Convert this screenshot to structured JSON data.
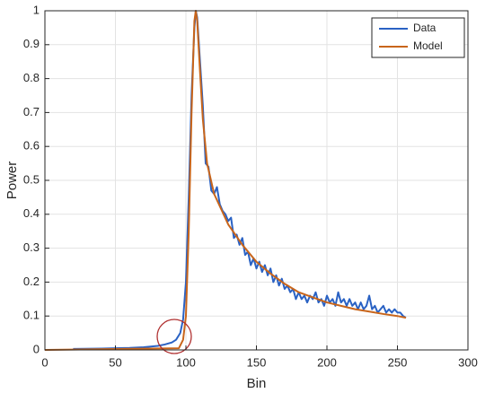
{
  "chart_data": {
    "type": "line",
    "xlabel": "Bin",
    "ylabel": "Power",
    "xlim": [
      0,
      300
    ],
    "xticks": [
      0,
      50,
      100,
      150,
      200,
      250,
      300
    ],
    "ylim": [
      0,
      1
    ],
    "yticks": [
      0,
      0.1,
      0.2,
      0.3,
      0.4,
      0.5,
      0.6,
      0.7,
      0.8,
      0.9,
      1
    ],
    "grid": true,
    "legend": "top-right",
    "series": [
      {
        "name": "Data",
        "color": "#2a62c4",
        "x": [
          20,
          40,
          60,
          70,
          80,
          85,
          90,
          93,
          96,
          98,
          100,
          102,
          104,
          106,
          107,
          108,
          110,
          112,
          114,
          116,
          118,
          120,
          122,
          124,
          126,
          128,
          130,
          132,
          134,
          136,
          138,
          140,
          142,
          144,
          146,
          148,
          150,
          152,
          154,
          156,
          158,
          160,
          162,
          164,
          166,
          168,
          170,
          172,
          174,
          176,
          178,
          180,
          182,
          184,
          186,
          188,
          190,
          192,
          194,
          196,
          198,
          200,
          202,
          204,
          206,
          208,
          210,
          212,
          214,
          216,
          218,
          220,
          222,
          224,
          226,
          228,
          230,
          232,
          234,
          236,
          238,
          240,
          242,
          244,
          246,
          248,
          250,
          252,
          254,
          256
        ],
        "values": [
          0.003,
          0.004,
          0.006,
          0.008,
          0.012,
          0.016,
          0.022,
          0.03,
          0.05,
          0.09,
          0.2,
          0.45,
          0.75,
          0.95,
          1.0,
          0.98,
          0.85,
          0.72,
          0.55,
          0.54,
          0.47,
          0.46,
          0.48,
          0.43,
          0.41,
          0.4,
          0.38,
          0.39,
          0.33,
          0.34,
          0.31,
          0.33,
          0.28,
          0.29,
          0.25,
          0.27,
          0.24,
          0.26,
          0.23,
          0.25,
          0.22,
          0.24,
          0.2,
          0.22,
          0.19,
          0.21,
          0.18,
          0.19,
          0.17,
          0.18,
          0.15,
          0.17,
          0.15,
          0.16,
          0.14,
          0.16,
          0.15,
          0.17,
          0.14,
          0.15,
          0.13,
          0.16,
          0.14,
          0.15,
          0.13,
          0.17,
          0.14,
          0.15,
          0.13,
          0.15,
          0.13,
          0.14,
          0.12,
          0.14,
          0.12,
          0.13,
          0.16,
          0.12,
          0.13,
          0.11,
          0.12,
          0.13,
          0.11,
          0.12,
          0.11,
          0.12,
          0.11,
          0.11,
          0.1,
          0.095
        ]
      },
      {
        "name": "Model",
        "color": "#c8651b",
        "x": [
          0,
          95,
          98,
          100,
          102,
          104,
          106,
          107,
          108,
          110,
          112,
          115,
          120,
          130,
          140,
          150,
          160,
          170,
          180,
          190,
          200,
          210,
          220,
          230,
          240,
          250,
          256
        ],
        "values": [
          0,
          0.005,
          0.03,
          0.1,
          0.35,
          0.7,
          0.97,
          1.0,
          0.97,
          0.82,
          0.68,
          0.55,
          0.46,
          0.37,
          0.31,
          0.26,
          0.225,
          0.195,
          0.17,
          0.155,
          0.14,
          0.13,
          0.12,
          0.113,
          0.106,
          0.1,
          0.095
        ]
      }
    ]
  }
}
